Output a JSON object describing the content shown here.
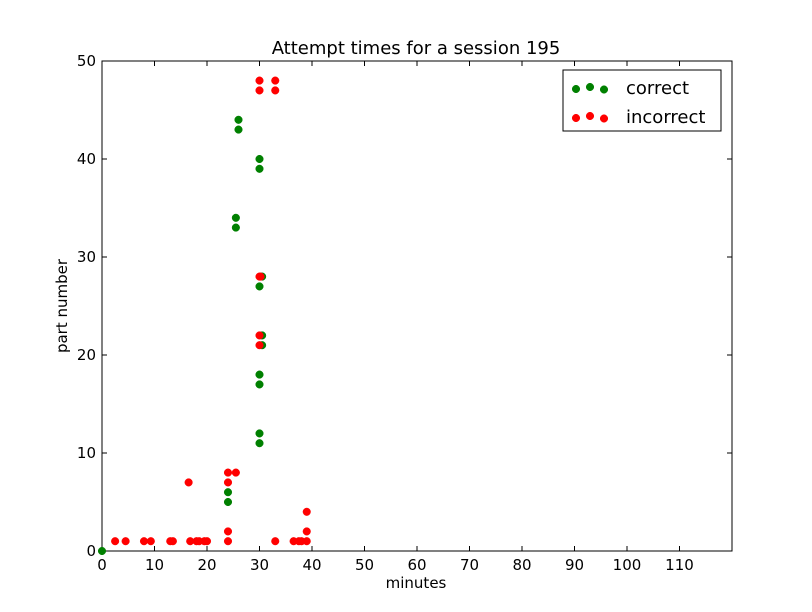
{
  "chart_data": {
    "type": "scatter",
    "title": "Attempt times for a session 195",
    "xlabel": "minutes",
    "ylabel": "part number",
    "xlim": [
      0,
      120
    ],
    "ylim": [
      0,
      50
    ],
    "xticks": [
      0,
      10,
      20,
      30,
      40,
      50,
      60,
      70,
      80,
      90,
      100,
      110
    ],
    "yticks": [
      0,
      10,
      20,
      30,
      40,
      50
    ],
    "grid": false,
    "legend_position": "top-right",
    "series": [
      {
        "name": "correct",
        "color": "#008000",
        "points": [
          [
            0,
            0
          ],
          [
            24,
            5
          ],
          [
            24,
            6
          ],
          [
            25.5,
            33
          ],
          [
            25.5,
            34
          ],
          [
            26,
            43
          ],
          [
            26,
            44
          ],
          [
            30,
            11
          ],
          [
            30,
            12
          ],
          [
            30,
            17
          ],
          [
            30,
            18
          ],
          [
            30.5,
            21
          ],
          [
            30.5,
            22
          ],
          [
            30,
            27
          ],
          [
            30.5,
            28
          ],
          [
            30,
            39
          ],
          [
            30,
            40
          ]
        ]
      },
      {
        "name": "incorrect",
        "color": "#ff0000",
        "points": [
          [
            2.5,
            1
          ],
          [
            4.5,
            1
          ],
          [
            8,
            1
          ],
          [
            9.3,
            1
          ],
          [
            13,
            1
          ],
          [
            13.5,
            1
          ],
          [
            16.5,
            7
          ],
          [
            16.8,
            1
          ],
          [
            18,
            1
          ],
          [
            18.5,
            1
          ],
          [
            19.5,
            1
          ],
          [
            20,
            1
          ],
          [
            24,
            1
          ],
          [
            24,
            2
          ],
          [
            24,
            7
          ],
          [
            24,
            8
          ],
          [
            25.5,
            8
          ],
          [
            30,
            21
          ],
          [
            30,
            22
          ],
          [
            30,
            28
          ],
          [
            30.2,
            28
          ],
          [
            30,
            47
          ],
          [
            30,
            48
          ],
          [
            33,
            47
          ],
          [
            33,
            48
          ],
          [
            33,
            1
          ],
          [
            36.5,
            1
          ],
          [
            37.5,
            1
          ],
          [
            38,
            1
          ],
          [
            39,
            1
          ],
          [
            39,
            2
          ],
          [
            39,
            4
          ]
        ]
      }
    ]
  }
}
